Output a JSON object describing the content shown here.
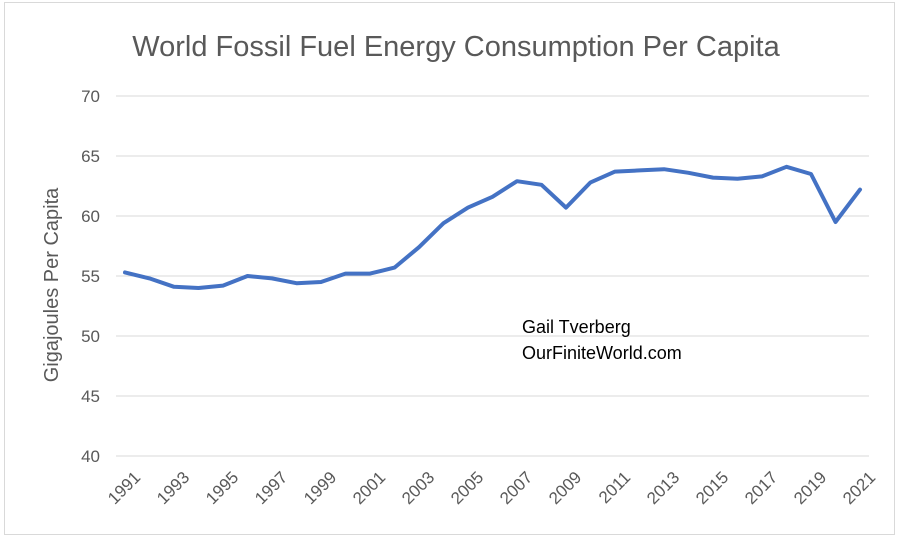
{
  "chart_data": {
    "type": "line",
    "title": "World Fossil Fuel Energy Consumption Per Capita",
    "xlabel": "",
    "ylabel": "Gigajoules Per Capita",
    "ylim": [
      40,
      70
    ],
    "yticks": [
      40,
      45,
      50,
      55,
      60,
      65,
      70
    ],
    "xtick_labels": [
      "1991",
      "1993",
      "1995",
      "1997",
      "1999",
      "2001",
      "2003",
      "2005",
      "2007",
      "2009",
      "2011",
      "2013",
      "2015",
      "2017",
      "2019",
      "2021"
    ],
    "grid": true,
    "x": [
      1991,
      1992,
      1993,
      1994,
      1995,
      1996,
      1997,
      1998,
      1999,
      2000,
      2001,
      2002,
      2003,
      2004,
      2005,
      2006,
      2007,
      2008,
      2009,
      2010,
      2011,
      2012,
      2013,
      2014,
      2015,
      2016,
      2017,
      2018,
      2019,
      2020,
      2021
    ],
    "series": [
      {
        "color": "#4472c4",
        "values": [
          55.3,
          54.8,
          54.1,
          54.0,
          54.2,
          55.0,
          54.8,
          54.4,
          54.5,
          55.2,
          55.2,
          55.7,
          57.4,
          59.4,
          60.7,
          61.6,
          62.9,
          62.6,
          60.7,
          62.8,
          63.7,
          63.8,
          63.9,
          63.6,
          63.2,
          63.1,
          63.3,
          64.1,
          63.5,
          59.5,
          62.2
        ]
      }
    ],
    "annotations": [
      "Gail Tverberg",
      "OurFiniteWorld.com"
    ]
  }
}
